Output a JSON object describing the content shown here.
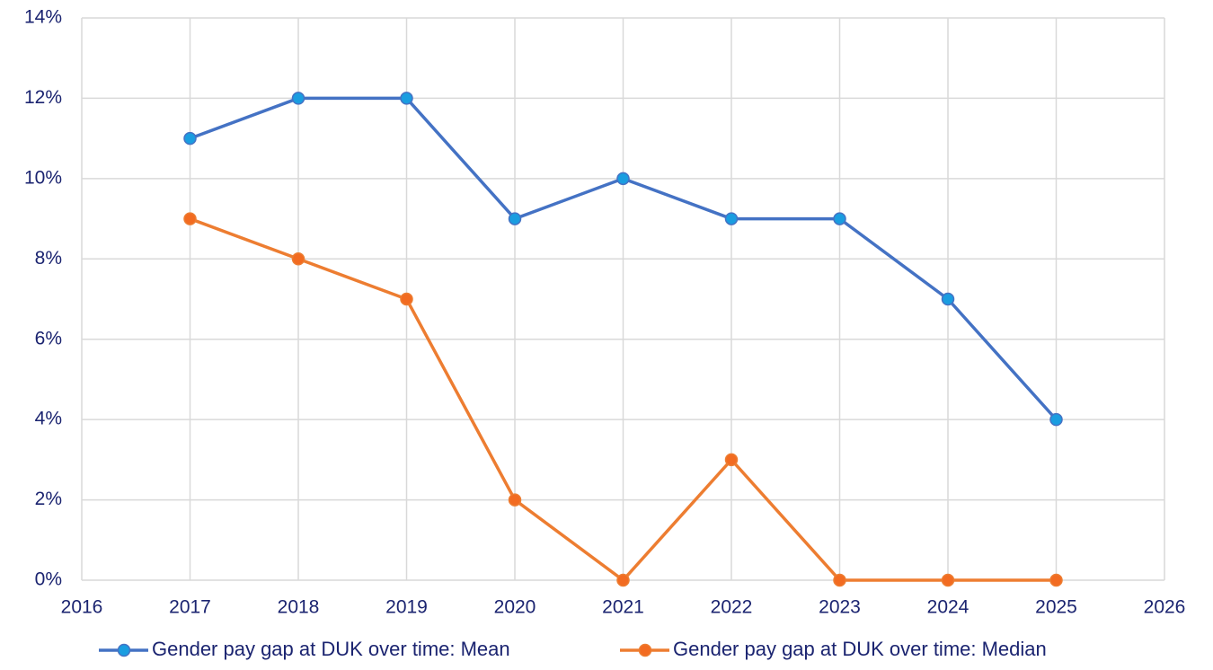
{
  "chart_data": {
    "type": "line",
    "x": [
      2017,
      2018,
      2019,
      2020,
      2021,
      2022,
      2023,
      2024,
      2025
    ],
    "series": [
      {
        "name": "Gender pay gap at DUK over time: Mean",
        "color": "#4472c4",
        "marker_color": "#1a9de0",
        "values": [
          11,
          12,
          12,
          9,
          10,
          9,
          9,
          7,
          4
        ]
      },
      {
        "name": "Gender pay gap at DUK over time: Median",
        "color": "#ed7d31",
        "marker_color": "#f26b21",
        "values": [
          9,
          8,
          7,
          2,
          0,
          3,
          0,
          0,
          0
        ]
      }
    ],
    "xlim": [
      2016,
      2026
    ],
    "xticks": [
      2016,
      2017,
      2018,
      2019,
      2020,
      2021,
      2022,
      2023,
      2024,
      2025,
      2026
    ],
    "ylim": [
      0,
      14
    ],
    "yticks": [
      {
        "value": 0,
        "label": "0%"
      },
      {
        "value": 2,
        "label": "2%"
      },
      {
        "value": 4,
        "label": "4%"
      },
      {
        "value": 6,
        "label": "6%"
      },
      {
        "value": 8,
        "label": "8%"
      },
      {
        "value": 10,
        "label": "10%"
      },
      {
        "value": 12,
        "label": "12%"
      },
      {
        "value": 14,
        "label": "14%"
      }
    ],
    "grid": true,
    "legend": "bottom"
  }
}
